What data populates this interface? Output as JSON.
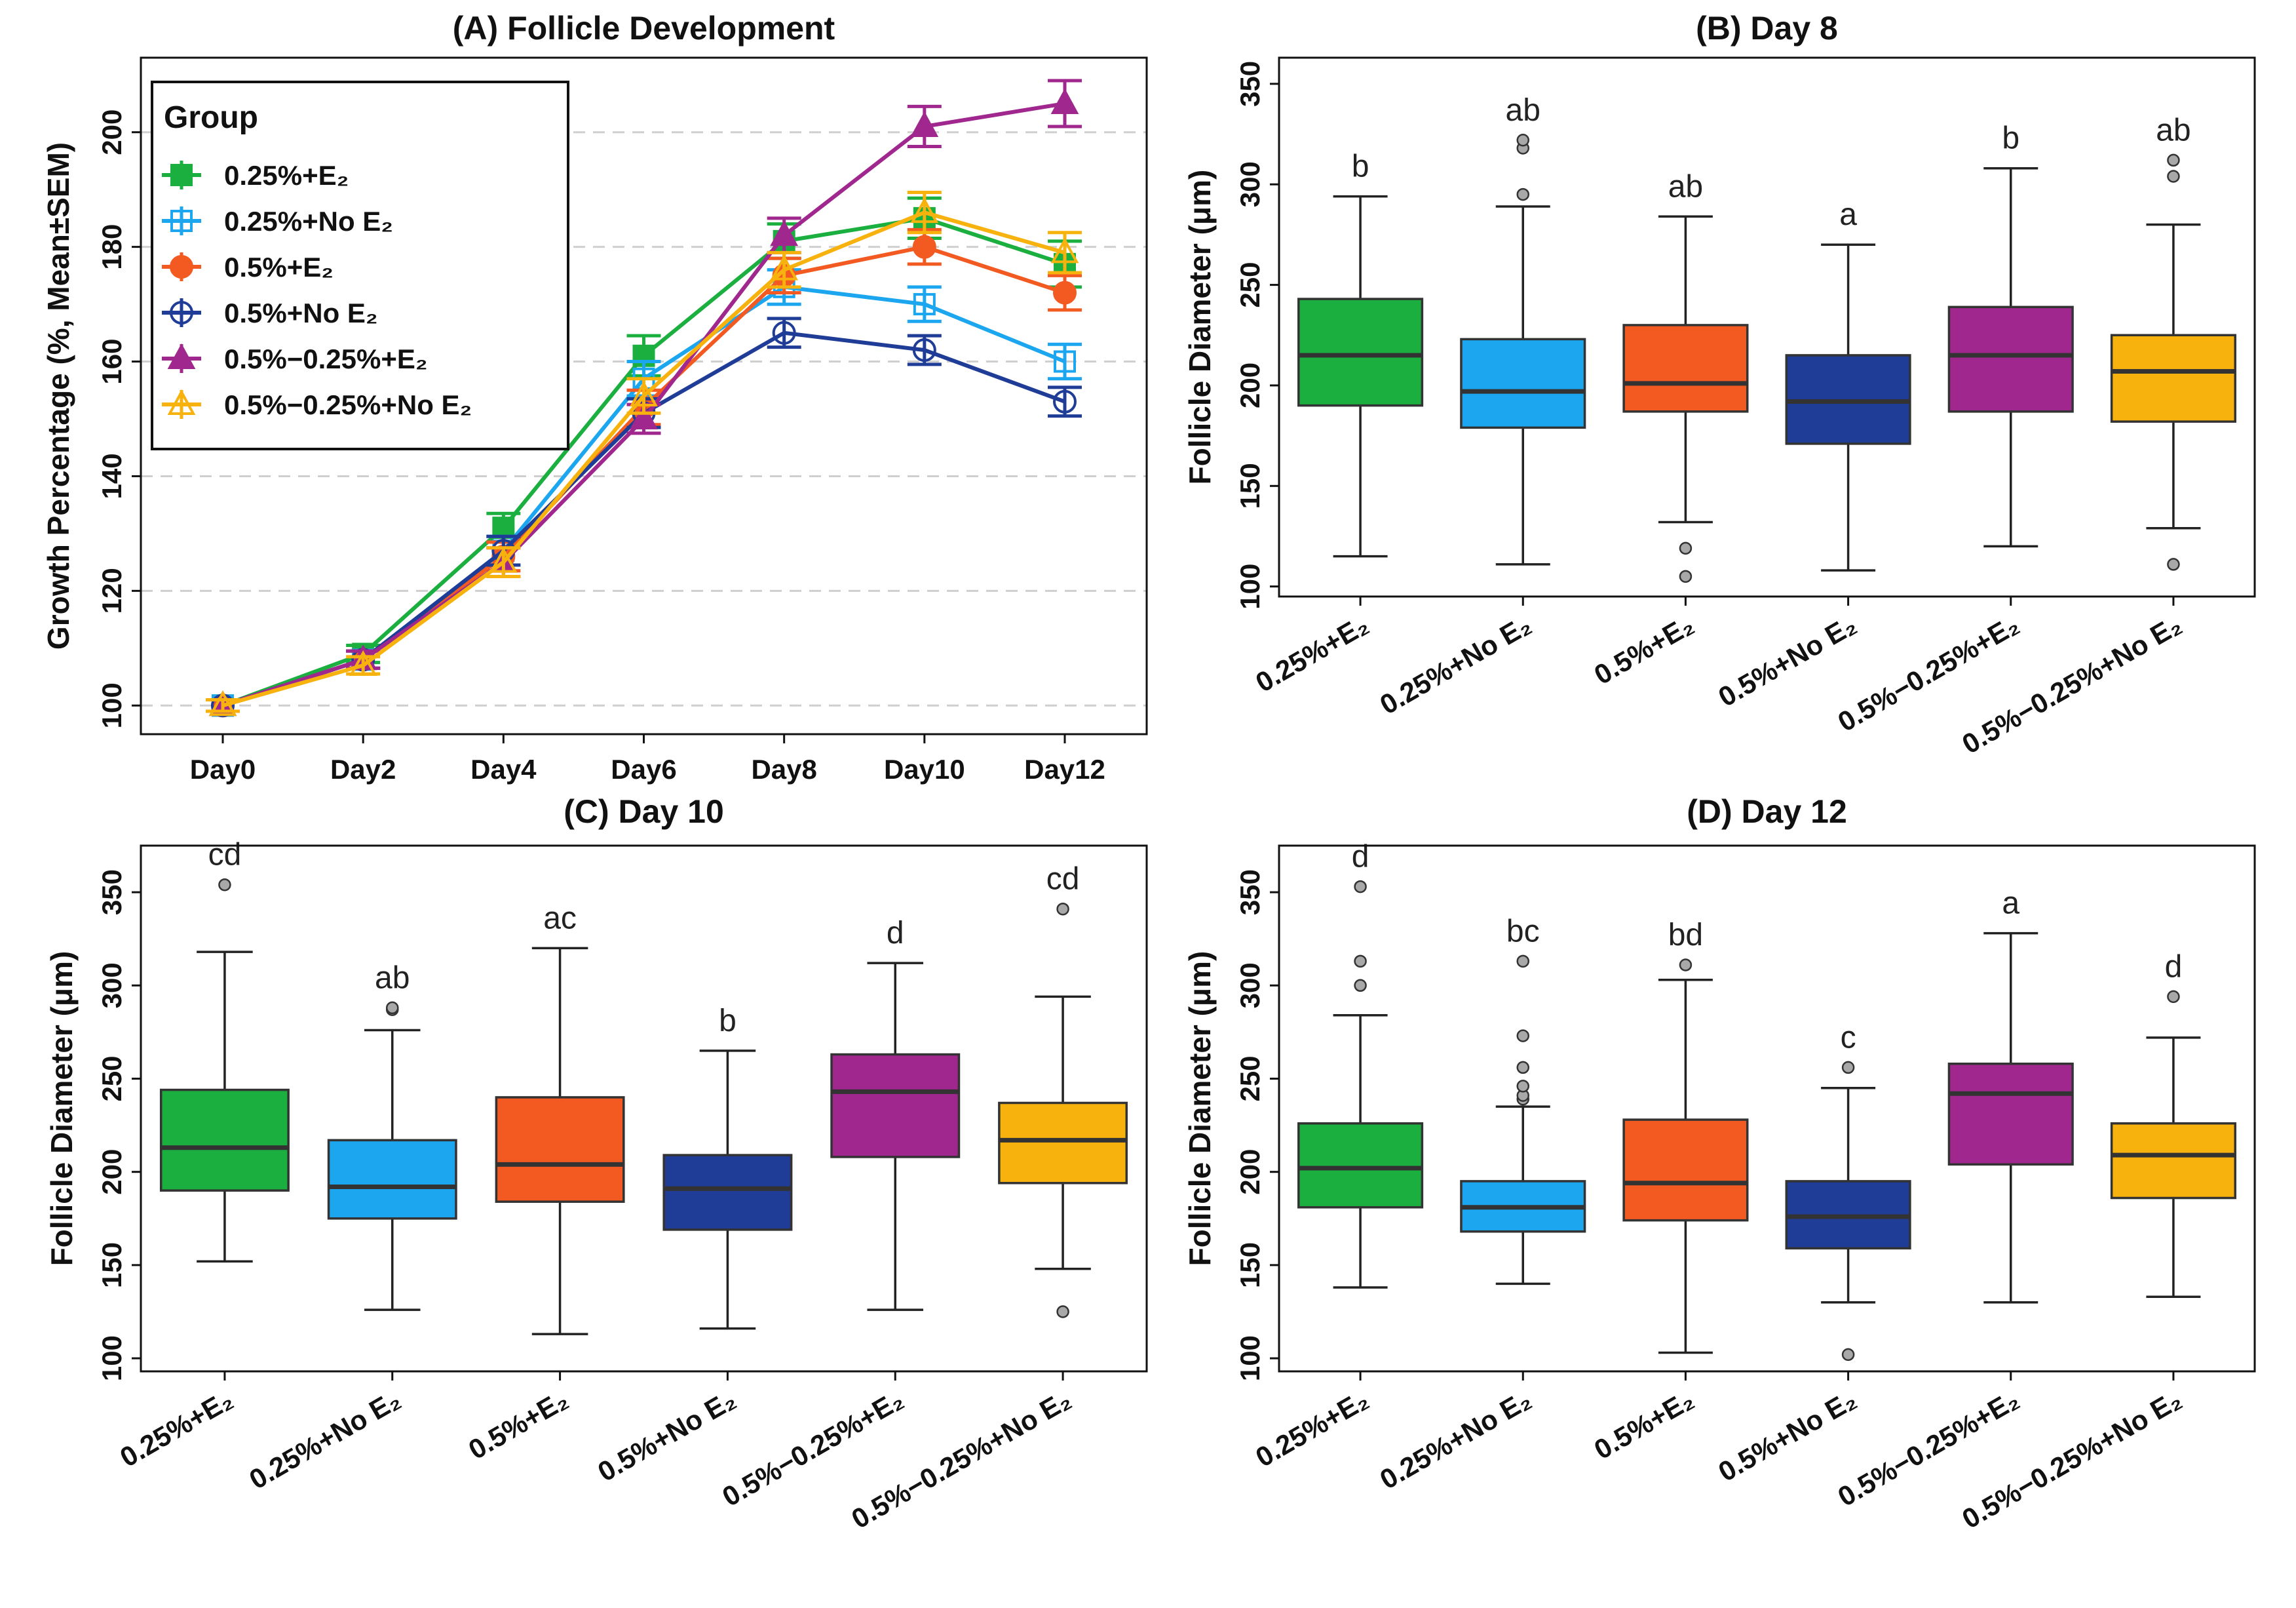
{
  "figure": {
    "colors": [
      "#1aaf3f",
      "#1ba6ef",
      "#f25a21",
      "#1f3c96",
      "#a0278e",
      "#f8b20d"
    ]
  },
  "chart_data": [
    {
      "id": "A",
      "type": "line",
      "title": "(A) Follicle Development",
      "xlabel": "",
      "ylabel": "Growth Percentage (%, Mean±SEM)",
      "categories": [
        "Day0",
        "Day2",
        "Day4",
        "Day6",
        "Day8",
        "Day10",
        "Day12"
      ],
      "ylim": [
        95,
        213
      ],
      "yticks": [
        100,
        120,
        140,
        160,
        180,
        200
      ],
      "grid": "dashed-horizontal",
      "legend": {
        "title": "Group",
        "position": "top-left"
      },
      "series": [
        {
          "name": "0.25%+E₂",
          "marker": "square-filled",
          "color": "#1aaf3f",
          "values": [
            100,
            109,
            131,
            161,
            181,
            185,
            177
          ],
          "sem": [
            1.0,
            1.5,
            2.5,
            3.5,
            3.0,
            3.5,
            4.0
          ]
        },
        {
          "name": "0.25%+No E₂",
          "marker": "square-open",
          "color": "#1ba6ef",
          "values": [
            100,
            108,
            127,
            157,
            173,
            170,
            160
          ],
          "sem": [
            1.0,
            1.5,
            2.5,
            3.0,
            3.0,
            3.0,
            3.0
          ]
        },
        {
          "name": "0.5%+E₂",
          "marker": "circle-filled",
          "color": "#f25a21",
          "values": [
            100,
            108,
            126,
            152,
            175,
            180,
            172
          ],
          "sem": [
            1.0,
            1.5,
            2.5,
            3.0,
            3.0,
            3.0,
            3.0
          ]
        },
        {
          "name": "0.5%+No E₂",
          "marker": "circle-open",
          "color": "#1f3c96",
          "values": [
            100,
            108,
            127,
            151,
            165,
            162,
            153
          ],
          "sem": [
            1.0,
            1.5,
            2.5,
            2.5,
            2.5,
            2.5,
            2.5
          ]
        },
        {
          "name": "0.5%−0.25%+E₂",
          "marker": "triangle-filled",
          "color": "#a0278e",
          "values": [
            100,
            108,
            125,
            150,
            182,
            201,
            205
          ],
          "sem": [
            1.0,
            1.5,
            2.5,
            2.5,
            3.0,
            3.5,
            4.0
          ]
        },
        {
          "name": "0.5%−0.25%+No E₂",
          "marker": "triangle-open",
          "color": "#f8b20d",
          "values": [
            100,
            107,
            125,
            154,
            176,
            186,
            179
          ],
          "sem": [
            1.0,
            1.5,
            2.5,
            3.0,
            3.0,
            3.5,
            3.5
          ]
        }
      ]
    },
    {
      "id": "B",
      "type": "box",
      "title": "(B) Day 8",
      "ylabel": "Follicle Diameter (μm)",
      "ylim": [
        95,
        363
      ],
      "yticks": [
        100,
        150,
        200,
        250,
        300,
        350
      ],
      "categories": [
        "0.25%+E₂",
        "0.25%+No E₂",
        "0.5%+E₂",
        "0.5%+No E₂",
        "0.5%−0.25%+E₂",
        "0.5%−0.25%+No E₂"
      ],
      "boxes": [
        {
          "min": 115,
          "q1": 190,
          "median": 215,
          "q3": 243,
          "max": 294,
          "outliers": [],
          "letter": "b"
        },
        {
          "min": 111,
          "q1": 179,
          "median": 197,
          "q3": 223,
          "max": 289,
          "outliers": [
            295,
            318,
            322
          ],
          "letter": "ab"
        },
        {
          "min": 132,
          "q1": 187,
          "median": 201,
          "q3": 230,
          "max": 284,
          "outliers": [
            105,
            119
          ],
          "letter": "ab"
        },
        {
          "min": 108,
          "q1": 171,
          "median": 192,
          "q3": 215,
          "max": 270,
          "outliers": [],
          "letter": "a"
        },
        {
          "min": 120,
          "q1": 187,
          "median": 215,
          "q3": 239,
          "max": 308,
          "outliers": [],
          "letter": "b"
        },
        {
          "min": 129,
          "q1": 182,
          "median": 207,
          "q3": 225,
          "max": 280,
          "outliers": [
            111,
            304,
            312
          ],
          "letter": "ab"
        }
      ]
    },
    {
      "id": "C",
      "type": "box",
      "title": "(C) Day 10",
      "ylabel": "Follicle Diameter (μm)",
      "ylim": [
        93,
        375
      ],
      "yticks": [
        100,
        150,
        200,
        250,
        300,
        350
      ],
      "categories": [
        "0.25%+E₂",
        "0.25%+No E₂",
        "0.5%+E₂",
        "0.5%+No E₂",
        "0.5%−0.25%+E₂",
        "0.5%−0.25%+No E₂"
      ],
      "boxes": [
        {
          "min": 152,
          "q1": 190,
          "median": 213,
          "q3": 244,
          "max": 318,
          "outliers": [
            354
          ],
          "letter": "cd"
        },
        {
          "min": 126,
          "q1": 175,
          "median": 192,
          "q3": 217,
          "max": 276,
          "outliers": [
            287,
            288
          ],
          "letter": "ab"
        },
        {
          "min": 113,
          "q1": 184,
          "median": 204,
          "q3": 240,
          "max": 320,
          "outliers": [],
          "letter": "ac"
        },
        {
          "min": 116,
          "q1": 169,
          "median": 191,
          "q3": 209,
          "max": 265,
          "outliers": [],
          "letter": "b"
        },
        {
          "min": 126,
          "q1": 208,
          "median": 243,
          "q3": 263,
          "max": 312,
          "outliers": [],
          "letter": "d"
        },
        {
          "min": 148,
          "q1": 194,
          "median": 217,
          "q3": 237,
          "max": 294,
          "outliers": [
            125,
            341
          ],
          "letter": "cd"
        }
      ]
    },
    {
      "id": "D",
      "type": "box",
      "title": "(D) Day 12",
      "ylabel": "Follicle Diameter (μm)",
      "ylim": [
        93,
        375
      ],
      "yticks": [
        100,
        150,
        200,
        250,
        300,
        350
      ],
      "categories": [
        "0.25%+E₂",
        "0.25%+No E₂",
        "0.5%+E₂",
        "0.5%+No E₂",
        "0.5%−0.25%+E₂",
        "0.5%−0.25%+No E₂"
      ],
      "boxes": [
        {
          "min": 138,
          "q1": 181,
          "median": 202,
          "q3": 226,
          "max": 284,
          "outliers": [
            300,
            313,
            353
          ],
          "letter": "d"
        },
        {
          "min": 140,
          "q1": 168,
          "median": 181,
          "q3": 195,
          "max": 235,
          "outliers": [
            239,
            241,
            246,
            256,
            273,
            313
          ],
          "letter": "bc"
        },
        {
          "min": 103,
          "q1": 174,
          "median": 194,
          "q3": 228,
          "max": 303,
          "outliers": [
            311
          ],
          "letter": "bd"
        },
        {
          "min": 130,
          "q1": 159,
          "median": 176,
          "q3": 195,
          "max": 245,
          "outliers": [
            102,
            256
          ],
          "letter": "c"
        },
        {
          "min": 130,
          "q1": 204,
          "median": 242,
          "q3": 258,
          "max": 328,
          "outliers": [],
          "letter": "a"
        },
        {
          "min": 133,
          "q1": 186,
          "median": 209,
          "q3": 226,
          "max": 272,
          "outliers": [
            294
          ],
          "letter": "d"
        }
      ]
    }
  ]
}
